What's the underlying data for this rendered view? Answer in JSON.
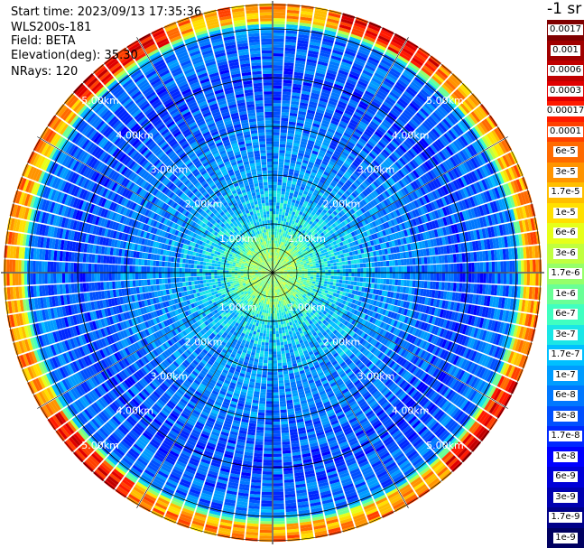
{
  "header": {
    "start_time": "Start time: 2023/09/13 17:35:36",
    "instrument": "WLS200s-181",
    "field": "Field: BETA",
    "elevation": "Elevation(deg): 35.30",
    "nrays": "NRays: 120"
  },
  "colorbar": {
    "unit_label": "-1 sr",
    "labels": [
      "0.0017",
      "0.001",
      "0.0006",
      "0.0003",
      "0.00017",
      "0.0001",
      "6e-5",
      "3e-5",
      "1.7e-5",
      "1e-5",
      "6e-6",
      "3e-6",
      "1.7e-6",
      "1e-6",
      "6e-7",
      "3e-7",
      "1.7e-7",
      "1e-7",
      "6e-8",
      "3e-8",
      "1.7e-8",
      "1e-8",
      "6e-9",
      "3e-9",
      "1.7e-9",
      "1e-9"
    ],
    "colors": [
      "#800000",
      "#a00000",
      "#c00000",
      "#e00000",
      "#ff1a00",
      "#ff4000",
      "#ff6a00",
      "#ff9400",
      "#ffbe00",
      "#ffe000",
      "#e6ff1a",
      "#c0ff40",
      "#96ff6a",
      "#6aff96",
      "#40ffc0",
      "#1ae6e6",
      "#00c0ff",
      "#009cff",
      "#0078ff",
      "#0050ff",
      "#0028ff",
      "#0000ff",
      "#0000d8",
      "#0000b0",
      "#000088",
      "#000060"
    ]
  },
  "chart_data": {
    "type": "heatmap",
    "projection": "polar-ppi",
    "field": "BETA",
    "nrays": 120,
    "max_range_km": 5.5,
    "range_rings_km": [
      1,
      2,
      3,
      4,
      5
    ],
    "ring_labels": [
      "1.00km",
      "2.00km",
      "3.00km",
      "4.00km",
      "5.00km"
    ],
    "radial_profile": [
      {
        "range_km": 0.0,
        "value": 1.7e-06
      },
      {
        "range_km": 0.5,
        "value": 1.7e-06
      },
      {
        "range_km": 1.0,
        "value": 3e-07
      },
      {
        "range_km": 2.0,
        "value": 1e-07
      },
      {
        "range_km": 3.0,
        "value": 6e-08
      },
      {
        "range_km": 4.0,
        "value": 3e-08
      },
      {
        "range_km": 5.0,
        "value": 6e-08
      },
      {
        "range_km": 5.2,
        "value": 1.7e-05
      },
      {
        "range_km": 5.4,
        "value": 3e-05
      }
    ],
    "scale": "log",
    "color_range": [
      1e-09,
      0.0017
    ],
    "grid": true
  }
}
